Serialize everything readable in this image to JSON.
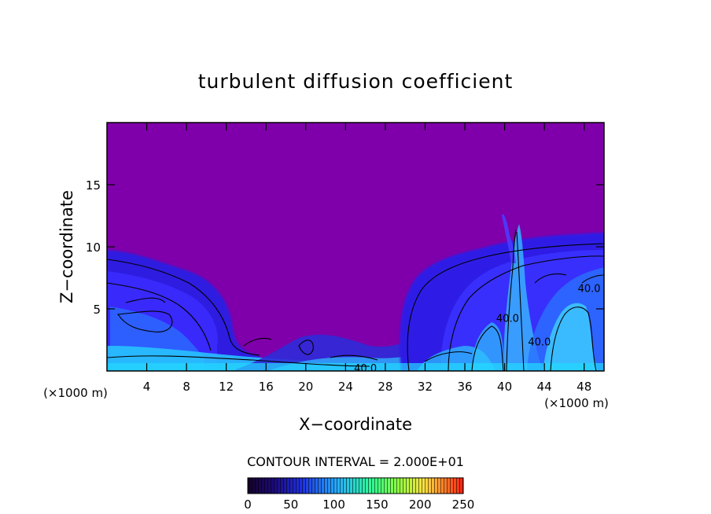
{
  "chart_data": {
    "type": "heatmap",
    "title": "turbulent diffusion coefficient",
    "xlabel": "X−coordinate",
    "ylabel": "Z−coordinate",
    "x_unit_left": "(×1000 m)",
    "x_unit_right": "(×1000 m)",
    "xlim": [
      0,
      50
    ],
    "ylim": [
      0,
      20
    ],
    "x_ticks": [
      4,
      8,
      12,
      16,
      20,
      24,
      28,
      32,
      36,
      40,
      44,
      48
    ],
    "y_ticks": [
      5,
      10,
      15
    ],
    "contour_interval_text": "CONTOUR INTERVAL = 2.000E+01",
    "contour_labels": [
      {
        "text": "40.0",
        "x": 26.0,
        "y": 0.2
      },
      {
        "text": "40.0",
        "x": 48.5,
        "y": 6.6
      },
      {
        "text": "40.0",
        "x": 40.3,
        "y": 4.2
      },
      {
        "text": "40.0",
        "x": 43.5,
        "y": 2.3
      }
    ],
    "colorbar": {
      "min": 0,
      "max": 250,
      "ticks": [
        0,
        50,
        100,
        150,
        200,
        250
      ],
      "colors": [
        "#1a0030",
        "#2a1ac0",
        "#2a90ff",
        "#30ffa0",
        "#c0ff40",
        "#ff4020"
      ]
    },
    "background_color": "#7f00aa"
  }
}
